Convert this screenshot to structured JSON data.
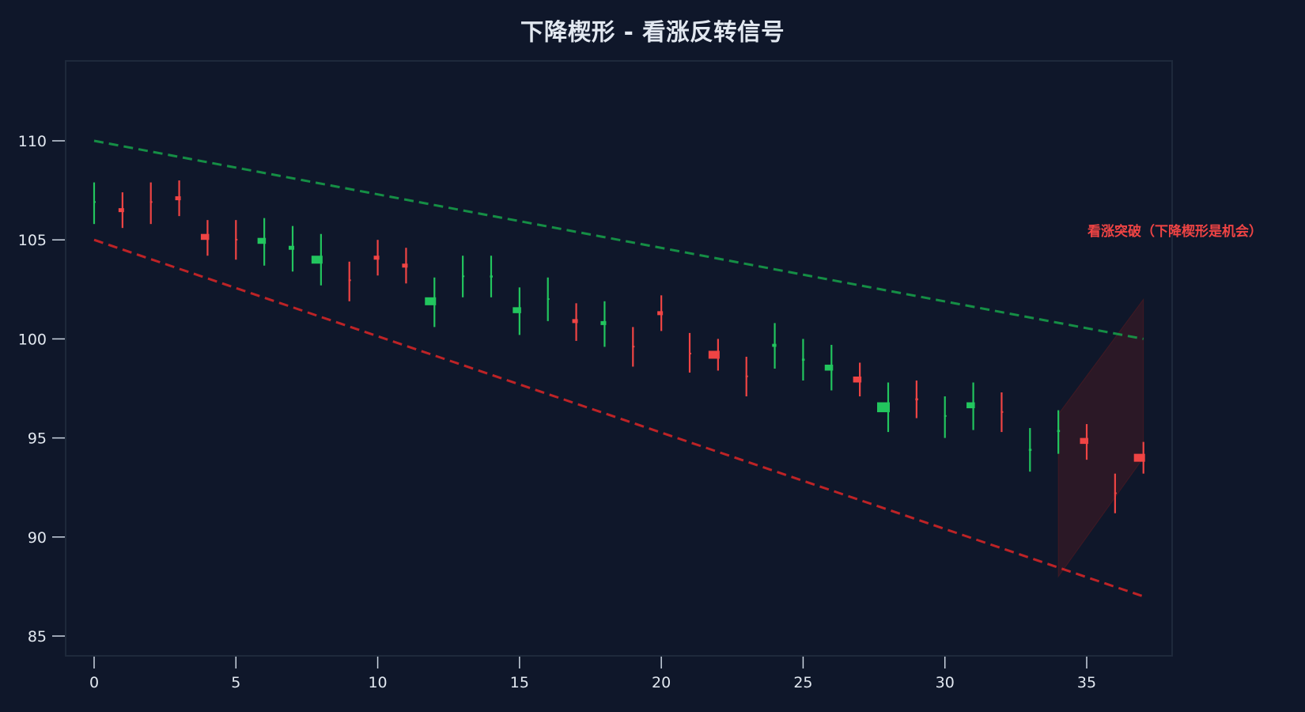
{
  "chart_data": {
    "type": "candlestick",
    "title": "下降楔形 - 看涨反转信号",
    "xlabel": "",
    "ylabel": "",
    "xlim": [
      -1,
      38
    ],
    "ylim": [
      84.0,
      114.0
    ],
    "xticks": [
      0,
      5,
      10,
      15,
      20,
      25,
      30,
      35
    ],
    "yticks": [
      85,
      90,
      95,
      100,
      105,
      110
    ],
    "grid": false,
    "colors": {
      "background": "#0f172a",
      "frame": "#1e293b",
      "up": "#22c55e",
      "down": "#ef4444",
      "upper_trendline": "#16a34a",
      "lower_trendline": "#dc2626",
      "breakout_zone": "#4c1d2b",
      "text": "#e2e8f0"
    },
    "candles": [
      {
        "x": 0,
        "open": 106.9,
        "high": 107.9,
        "low": 105.8,
        "close": 106.95
      },
      {
        "x": 1,
        "open": 106.6,
        "high": 107.4,
        "low": 105.6,
        "close": 106.4
      },
      {
        "x": 2,
        "open": 106.95,
        "high": 107.9,
        "low": 105.8,
        "close": 106.9
      },
      {
        "x": 3,
        "open": 107.2,
        "high": 108.0,
        "low": 106.2,
        "close": 107.0
      },
      {
        "x": 4,
        "open": 105.3,
        "high": 106.0,
        "low": 104.2,
        "close": 105.0
      },
      {
        "x": 5,
        "open": 105.05,
        "high": 106.0,
        "low": 104.0,
        "close": 105.0
      },
      {
        "x": 6,
        "open": 104.8,
        "high": 106.1,
        "low": 103.7,
        "close": 105.1
      },
      {
        "x": 7,
        "open": 104.5,
        "high": 105.7,
        "low": 103.4,
        "close": 104.7
      },
      {
        "x": 8,
        "open": 103.8,
        "high": 105.3,
        "low": 102.7,
        "close": 104.2
      },
      {
        "x": 9,
        "open": 103.0,
        "high": 103.9,
        "low": 101.9,
        "close": 102.95
      },
      {
        "x": 10,
        "open": 104.2,
        "high": 105.0,
        "low": 103.2,
        "close": 104.0
      },
      {
        "x": 11,
        "open": 103.8,
        "high": 104.6,
        "low": 102.8,
        "close": 103.6
      },
      {
        "x": 12,
        "open": 101.7,
        "high": 103.1,
        "low": 100.6,
        "close": 102.1
      },
      {
        "x": 13,
        "open": 103.15,
        "high": 104.2,
        "low": 102.1,
        "close": 103.2
      },
      {
        "x": 14,
        "open": 103.1,
        "high": 104.2,
        "low": 102.1,
        "close": 103.2
      },
      {
        "x": 15,
        "open": 101.3,
        "high": 102.6,
        "low": 100.2,
        "close": 101.6
      },
      {
        "x": 16,
        "open": 102.0,
        "high": 103.1,
        "low": 100.9,
        "close": 102.05
      },
      {
        "x": 17,
        "open": 101.0,
        "high": 101.8,
        "low": 99.9,
        "close": 100.8
      },
      {
        "x": 18,
        "open": 100.7,
        "high": 101.9,
        "low": 99.6,
        "close": 100.9
      },
      {
        "x": 19,
        "open": 99.65,
        "high": 100.6,
        "low": 98.6,
        "close": 99.6
      },
      {
        "x": 20,
        "open": 101.4,
        "high": 102.2,
        "low": 100.4,
        "close": 101.2
      },
      {
        "x": 21,
        "open": 99.3,
        "high": 100.3,
        "low": 98.3,
        "close": 99.25
      },
      {
        "x": 22,
        "open": 99.4,
        "high": 100.0,
        "low": 98.4,
        "close": 99.0
      },
      {
        "x": 23,
        "open": 98.15,
        "high": 99.1,
        "low": 97.1,
        "close": 98.1
      },
      {
        "x": 24,
        "open": 99.6,
        "high": 100.8,
        "low": 98.5,
        "close": 99.75
      },
      {
        "x": 25,
        "open": 98.9,
        "high": 100.0,
        "low": 97.9,
        "close": 99.0
      },
      {
        "x": 26,
        "open": 98.4,
        "high": 99.7,
        "low": 97.4,
        "close": 98.7
      },
      {
        "x": 27,
        "open": 98.1,
        "high": 98.8,
        "low": 97.1,
        "close": 97.8
      },
      {
        "x": 28,
        "open": 96.3,
        "high": 97.8,
        "low": 95.3,
        "close": 96.8
      },
      {
        "x": 29,
        "open": 97.0,
        "high": 97.9,
        "low": 96.0,
        "close": 96.9
      },
      {
        "x": 30,
        "open": 96.1,
        "high": 97.1,
        "low": 95.0,
        "close": 96.15
      },
      {
        "x": 31,
        "open": 96.5,
        "high": 97.8,
        "low": 95.4,
        "close": 96.8
      },
      {
        "x": 32,
        "open": 96.35,
        "high": 97.3,
        "low": 95.3,
        "close": 96.3
      },
      {
        "x": 33,
        "open": 94.35,
        "high": 95.5,
        "low": 93.3,
        "close": 94.45
      },
      {
        "x": 34,
        "open": 95.3,
        "high": 96.4,
        "low": 94.2,
        "close": 95.4
      },
      {
        "x": 35,
        "open": 95.0,
        "high": 95.7,
        "low": 93.9,
        "close": 94.7
      },
      {
        "x": 36,
        "open": 92.25,
        "high": 93.2,
        "low": 91.2,
        "close": 92.2
      },
      {
        "x": 37,
        "open": 94.2,
        "high": 94.8,
        "low": 93.2,
        "close": 93.8
      }
    ],
    "trendlines": [
      {
        "name": "upper resistance",
        "color": "#16a34a",
        "style": "dashed",
        "x": [
          0,
          37
        ],
        "y": [
          110,
          100
        ]
      },
      {
        "name": "lower support",
        "color": "#dc2626",
        "style": "dashed",
        "x": [
          0,
          37
        ],
        "y": [
          105,
          87
        ]
      }
    ],
    "shaded_region": {
      "name": "breakout zone",
      "points": [
        [
          34,
          96.2
        ],
        [
          37,
          102.0
        ],
        [
          37,
          94.0
        ],
        [
          34,
          88.0
        ]
      ],
      "color": "#7f1d1d",
      "opacity": 0.25
    },
    "annotations": [
      {
        "text": "看涨突破（下降楔形是机会）",
        "x": 41.2,
        "y": 105.4,
        "color": "#ef4444"
      }
    ]
  }
}
